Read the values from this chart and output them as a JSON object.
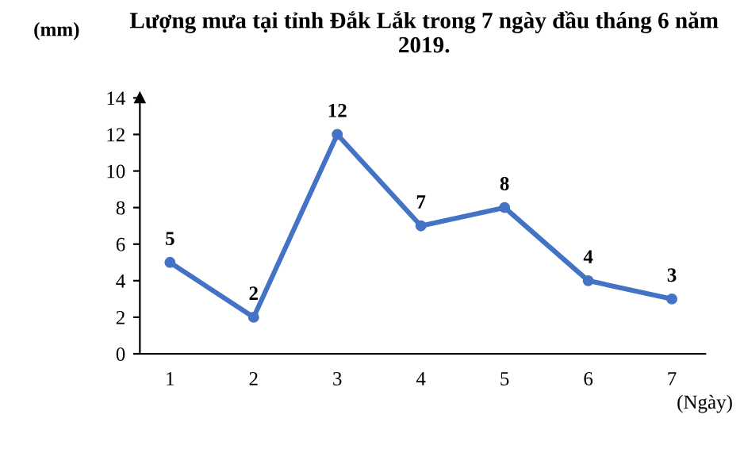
{
  "chart_data": {
    "type": "line",
    "title": "Lượng mưa tại tỉnh Đắk Lắk trong 7 ngày đầu tháng 6 năm 2019.",
    "ylabel": "(mm)",
    "xlabel": "(Ngày)",
    "categories": [
      "1",
      "2",
      "3",
      "4",
      "5",
      "6",
      "7"
    ],
    "series": [
      {
        "color": "#4472c4",
        "values": [
          5,
          2,
          12,
          7,
          8,
          4,
          3
        ]
      }
    ],
    "ylim": [
      0,
      14
    ],
    "yticks": [
      0,
      2,
      4,
      6,
      8,
      10,
      12,
      14
    ],
    "data_labels": true,
    "marker": "circle",
    "line_style": "solid",
    "grid": false,
    "legend": false
  }
}
